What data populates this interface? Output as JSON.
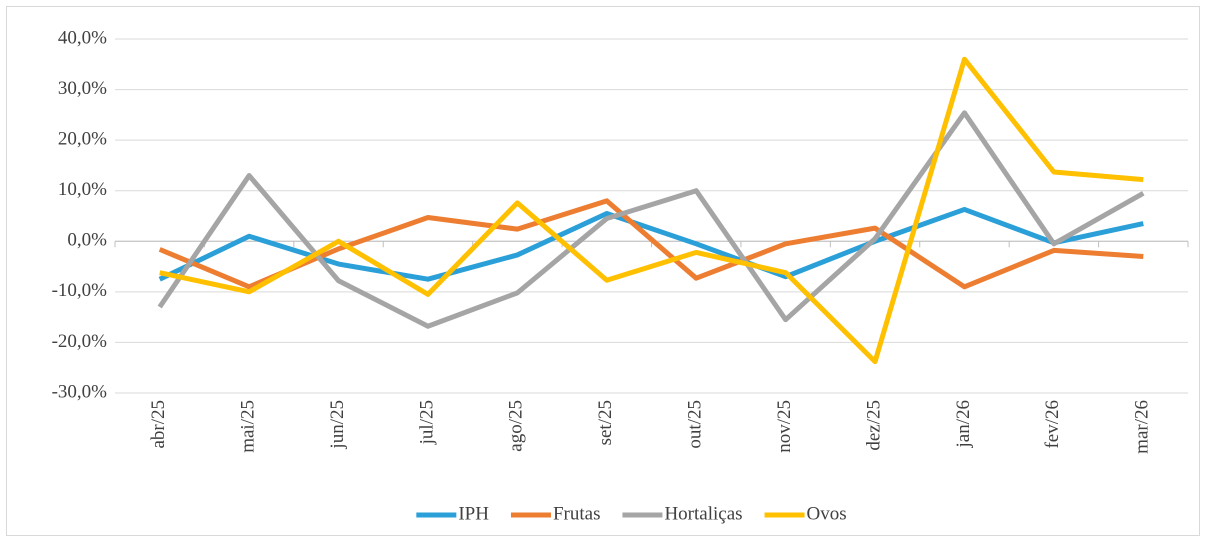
{
  "chart_data": {
    "type": "line",
    "categories": [
      "abr/25",
      "mai/25",
      "jun/25",
      "jul/25",
      "ago/25",
      "set/25",
      "out/25",
      "nov/25",
      "dez/25",
      "jan/26",
      "fev/26",
      "mar/26"
    ],
    "series": [
      {
        "name": "IPH",
        "color": "#2a9fd8",
        "values": [
          -7.5,
          1,
          -4.5,
          -7.5,
          -2.7,
          5.5,
          -0.5,
          -7,
          0,
          6.3,
          -0.3,
          3.5
        ]
      },
      {
        "name": "Frutas",
        "color": "#ed7d31",
        "values": [
          -1.6,
          -9,
          -1.5,
          4.7,
          2.4,
          8,
          -7.3,
          -0.5,
          2.6,
          -9,
          -1.8,
          -3
        ]
      },
      {
        "name": "Hortaliças",
        "color": "#a5a5a5",
        "values": [
          -13,
          13,
          -7.8,
          -16.8,
          -10.2,
          4.5,
          10,
          -15.5,
          0.5,
          25.4,
          -0.5,
          9.5
        ]
      },
      {
        "name": "Ovos",
        "color": "#ffc000",
        "values": [
          -6.2,
          -10,
          0,
          -10.5,
          7.6,
          -7.7,
          -2.2,
          -6.2,
          -23.8,
          36,
          13.7,
          12.2
        ]
      }
    ],
    "ylim": [
      -30,
      40
    ],
    "yticks": [
      {
        "value": -30,
        "label": "-30,0%"
      },
      {
        "value": -20,
        "label": "-20,0%"
      },
      {
        "value": -10,
        "label": "-10,0%"
      },
      {
        "value": 0,
        "label": "0,0%"
      },
      {
        "value": 10,
        "label": "10,0%"
      },
      {
        "value": 20,
        "label": "20,0%"
      },
      {
        "value": 30,
        "label": "30,0%"
      },
      {
        "value": 40,
        "label": "40,0%"
      }
    ],
    "grid": true,
    "legend": "bottom"
  }
}
